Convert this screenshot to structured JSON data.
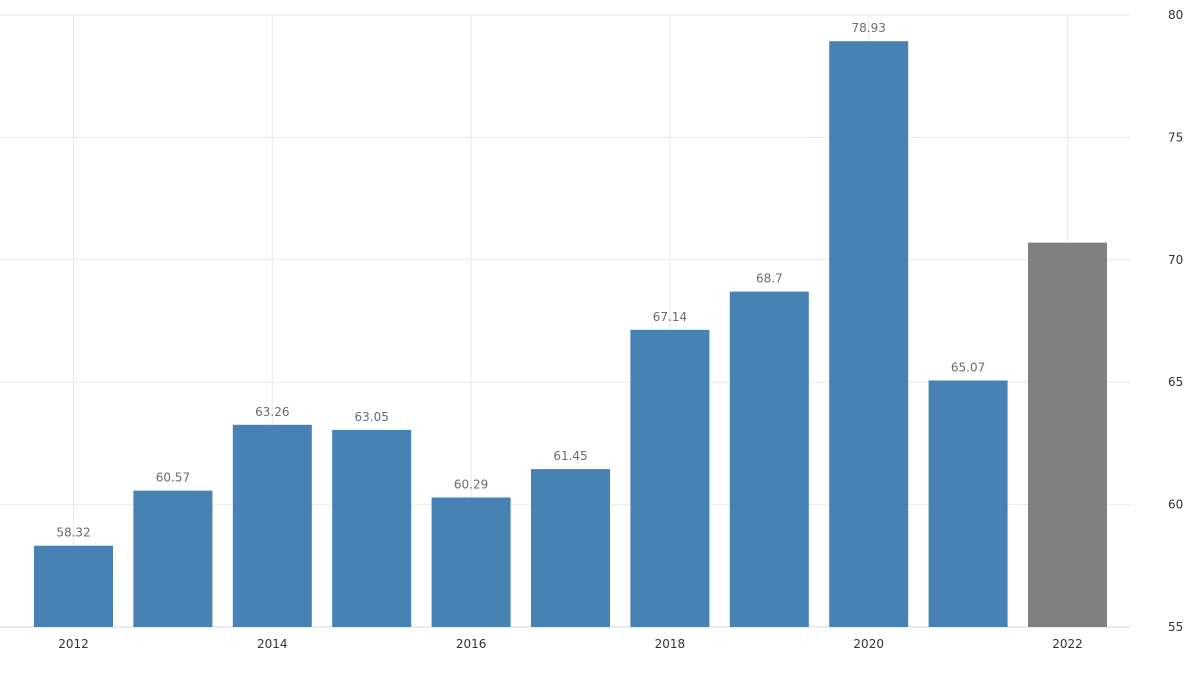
{
  "chart_data": {
    "type": "bar",
    "title": "",
    "xlabel": "",
    "ylabel": "",
    "ylim": [
      55,
      80
    ],
    "yticks": [
      55,
      60,
      65,
      70,
      75,
      80
    ],
    "x_tick_labels": [
      "2012",
      "2014",
      "2016",
      "2018",
      "2020",
      "2022"
    ],
    "categories": [
      "2012",
      "2013",
      "2014",
      "2015",
      "2016",
      "2017",
      "2018",
      "2019",
      "2020",
      "2021",
      "2022"
    ],
    "values": [
      58.32,
      60.57,
      63.26,
      63.05,
      60.29,
      61.45,
      67.14,
      68.7,
      78.93,
      65.07,
      70.7
    ],
    "value_labels": [
      "58.32",
      "60.57",
      "63.26",
      "63.05",
      "60.29",
      "61.45",
      "67.14",
      "68.7",
      "78.93",
      "65.07",
      ""
    ],
    "bar_colors": [
      "#4682b4",
      "#4682b4",
      "#4682b4",
      "#4682b4",
      "#4682b4",
      "#4682b4",
      "#4682b4",
      "#4682b4",
      "#4682b4",
      "#4682b4",
      "#808080"
    ],
    "grid": true,
    "y_axis_position": "right"
  }
}
